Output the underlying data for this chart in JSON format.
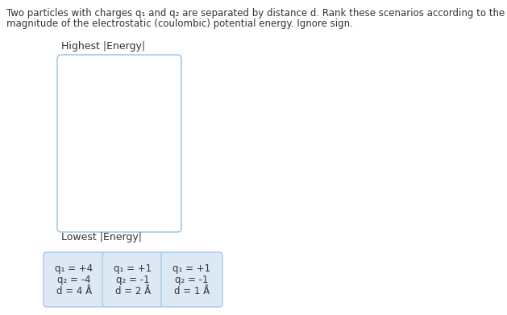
{
  "title_line1": "Two particles with charges q₁ and q₂ are separated by distance d. Rank these scenarios according to the",
  "title_line2": "magnitude of the electrostatic (coulombic) potential energy. Ignore sign.",
  "highest_label": "Highest |Energy|",
  "lowest_label": "Lowest |Energy|",
  "box_bg_color": "#dce9f5",
  "box_border_color": "#a8c8e8",
  "cards": [
    {
      "q1": "q₁ = +4",
      "q2": "q₂ = -4",
      "d": "d = 4 Å"
    },
    {
      "q1": "q₁ = +1",
      "q2": "q₂ = -1",
      "d": "d = 2 Å"
    },
    {
      "q1": "q₁ = +1",
      "q2": "q₂ = -1",
      "d": "d = 1 Å"
    }
  ],
  "main_box_color": "#ffffff",
  "main_box_border": "#a8c8e8",
  "bg_color": "#ffffff",
  "font_size_title": 8.5,
  "font_size_label": 9.0,
  "font_size_card": 8.5
}
